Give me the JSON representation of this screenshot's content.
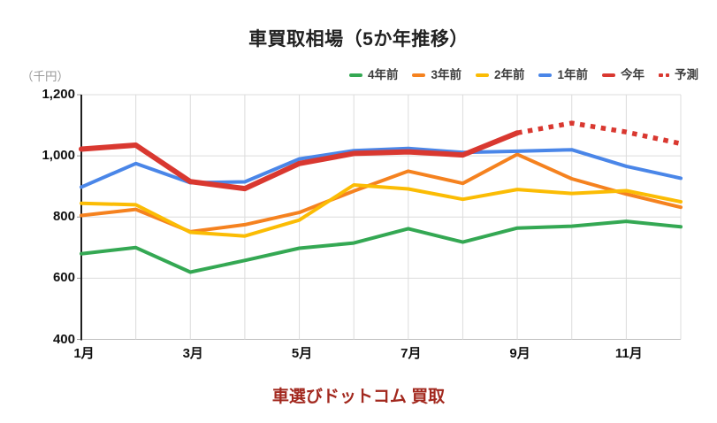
{
  "title": "車買取相場（5か年推移）",
  "footer": {
    "text": "車選びドットコム 買取",
    "color": "#A2281E"
  },
  "colors": {
    "green": "#34A853",
    "orange": "#F5821F",
    "yellow": "#FBBC04",
    "blue": "#4A86E8",
    "red": "#D93830",
    "gridline": "#dcdcdc",
    "axis": "#1f1f1f",
    "footer_text": "#A2281E"
  },
  "chart_data": {
    "type": "line",
    "title": "車買取相場（5か年推移）",
    "unit_label": "（千円）",
    "ylim": [
      400,
      1200
    ],
    "grid": true,
    "legend_position": "top-right",
    "x_months": [
      1,
      2,
      3,
      4,
      5,
      6,
      7,
      8,
      9,
      10,
      11,
      12
    ],
    "x_ticks": [
      {
        "m": 1,
        "label": "1月"
      },
      {
        "m": 3,
        "label": "3月"
      },
      {
        "m": 5,
        "label": "5月"
      },
      {
        "m": 7,
        "label": "7月"
      },
      {
        "m": 9,
        "label": "9月"
      },
      {
        "m": 11,
        "label": "11月"
      }
    ],
    "y_ticks": [
      {
        "value": 400,
        "label": "400"
      },
      {
        "value": 600,
        "label": "600"
      },
      {
        "value": 800,
        "label": "800"
      },
      {
        "value": 1000,
        "label": "1,000"
      },
      {
        "value": 1200,
        "label": "1,200"
      }
    ],
    "series": [
      {
        "name": "4年前",
        "color": "#34A853",
        "style": "solid",
        "thickness": "normal",
        "values": [
          680,
          700,
          620,
          658,
          698,
          715,
          762,
          718,
          764,
          770,
          786,
          768
        ]
      },
      {
        "name": "3年前",
        "color": "#F5821F",
        "style": "solid",
        "thickness": "normal",
        "values": [
          805,
          825,
          752,
          775,
          815,
          885,
          950,
          910,
          1005,
          925,
          875,
          832
        ]
      },
      {
        "name": "2年前",
        "color": "#FBBC04",
        "style": "solid",
        "thickness": "normal",
        "values": [
          845,
          840,
          750,
          738,
          790,
          905,
          892,
          858,
          890,
          877,
          886,
          850
        ]
      },
      {
        "name": "1年前",
        "color": "#4A86E8",
        "style": "solid",
        "thickness": "normal",
        "values": [
          898,
          975,
          912,
          915,
          990,
          1017,
          1024,
          1011,
          1015,
          1020,
          966,
          927
        ]
      },
      {
        "name": "今年",
        "color": "#D93830",
        "style": "solid",
        "thickness": "thick",
        "values": [
          1022,
          1035,
          916,
          893,
          975,
          1008,
          1013,
          1003,
          1075,
          null,
          null,
          null
        ]
      },
      {
        "name": "予測",
        "color": "#D93830",
        "style": "dotted",
        "thickness": "thick",
        "values": [
          null,
          null,
          null,
          null,
          null,
          null,
          null,
          null,
          1075,
          1107,
          1078,
          1040
        ]
      }
    ]
  }
}
